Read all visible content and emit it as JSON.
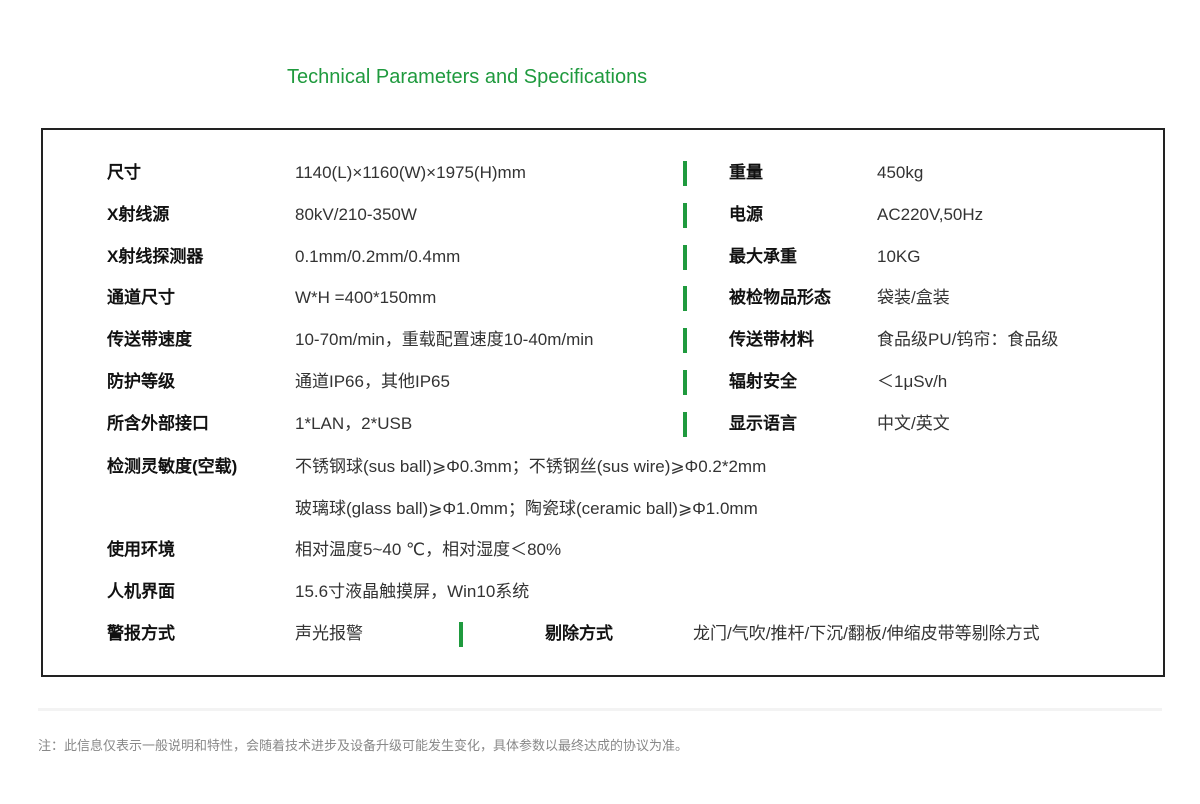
{
  "title": "Technical Parameters and Specifications",
  "accent_color": "#1f9a3e",
  "rows": [
    {
      "label": "尺寸",
      "value": "1140(L)×1160(W)×1975(H)mm",
      "label2": "重量",
      "value2": "450kg"
    },
    {
      "label": "X射线源",
      "value": "80kV/210-350W",
      "label2": "电源",
      "value2": "AC220V,50Hz"
    },
    {
      "label": "X射线探测器",
      "value": "0.1mm/0.2mm/0.4mm",
      "label2": "最大承重",
      "value2": "10KG"
    },
    {
      "label": "通道尺寸",
      "value": "W*H =400*150mm",
      "label2": "被检物品形态",
      "value2": "袋装/盒装"
    },
    {
      "label": "传送带速度",
      "value": "10-70m/min，重载配置速度10-40m/min",
      "label2": "传送带材料",
      "value2": "食品级PU/钨帘：食品级"
    },
    {
      "label": "防护等级",
      "value": "通道IP66，其他IP65",
      "label2": "辐射安全",
      "value2": "＜1μSv/h"
    },
    {
      "label": "所含外部接口",
      "value": "1*LAN，2*USB",
      "label2": "显示语言",
      "value2": "中文/英文"
    }
  ],
  "sensitivity": {
    "label": "检测灵敏度(空载)",
    "line1": "不锈钢球(sus ball)⩾Φ0.3mm；不锈钢丝(sus wire)⩾Φ0.2*2mm",
    "line2": "玻璃球(glass ball)⩾Φ1.0mm；陶瓷球(ceramic ball)⩾Φ1.0mm"
  },
  "environment": {
    "label": "使用环境",
    "value": "相对温度5~40 ℃，相对湿度＜80%"
  },
  "hmi": {
    "label": "人机界面",
    "value": "15.6寸液晶触摸屏，Win10系统"
  },
  "alarm": {
    "label": "警报方式",
    "value": "声光报警",
    "label2": "剔除方式",
    "value2": "龙门/气吹/推杆/下沉/翻板/伸缩皮带等剔除方式"
  },
  "footnote": "注：此信息仅表示一般说明和特性，会随着技术进步及设备升级可能发生变化，具体参数以最终达成的协议为准。"
}
